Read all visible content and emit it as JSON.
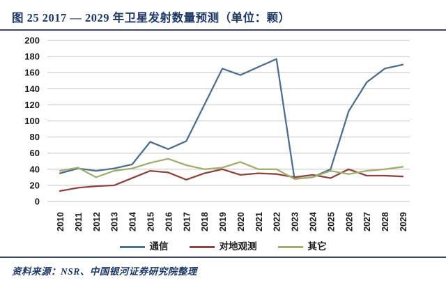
{
  "figure": {
    "title": "图 25  2017 — 2029 年卫星发射数量预测（单位：颗）",
    "source": "资料来源：NSR、中国银河证券研究院整理"
  },
  "colors": {
    "title_navy": "#1F3864",
    "rule": "#3E4A63",
    "grid": "#C2C2C2",
    "tick_text": "#1a1a1a",
    "series_comm": "#4E6E8C",
    "series_earth_obs": "#8E4340",
    "series_other": "#A0AF6E"
  },
  "chart_data": {
    "type": "line",
    "title": "2017 — 2029 年卫星发射数量预测（单位：颗）",
    "xlabel": "",
    "ylabel": "",
    "x": [
      2010,
      2011,
      2012,
      2013,
      2014,
      2015,
      2016,
      2017,
      2018,
      2019,
      2020,
      2021,
      2022,
      2023,
      2024,
      2025,
      2026,
      2027,
      2028,
      2029
    ],
    "series": [
      {
        "name": "通信",
        "color": "#4E6E8C",
        "values": [
          35,
          41,
          38,
          41,
          46,
          74,
          65,
          75,
          120,
          165,
          157,
          167,
          177,
          28,
          30,
          40,
          112,
          148,
          165,
          170
        ]
      },
      {
        "name": "对地观测",
        "color": "#8E4340",
        "values": [
          13,
          17,
          19,
          20,
          29,
          38,
          36,
          27,
          35,
          40,
          33,
          35,
          34,
          30,
          33,
          29,
          40,
          32,
          32,
          31
        ]
      },
      {
        "name": "其它",
        "color": "#A0AF6E",
        "values": [
          38,
          42,
          30,
          38,
          41,
          48,
          53,
          45,
          40,
          42,
          49,
          40,
          40,
          28,
          30,
          38,
          34,
          38,
          40,
          43
        ]
      }
    ],
    "ylim": [
      0,
      200
    ],
    "ytick_step": 20,
    "grid": true,
    "legend_position": "bottom"
  }
}
